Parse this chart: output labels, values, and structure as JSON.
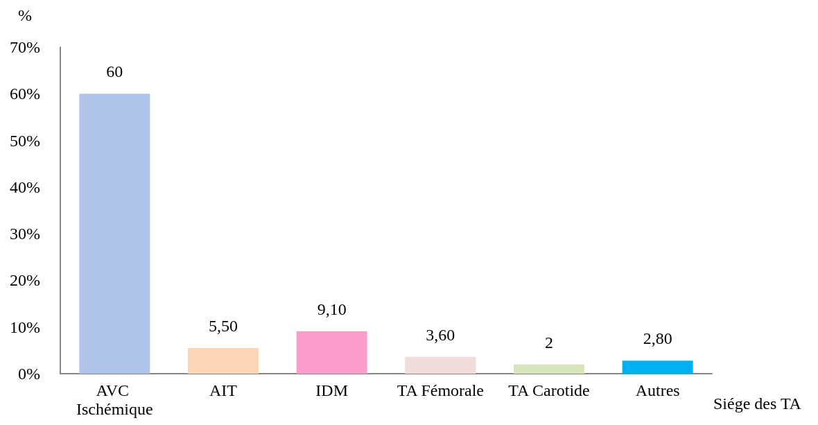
{
  "chart_data": {
    "type": "bar",
    "xlabel": "Siége des TA",
    "ylabel": "%",
    "categories": [
      "AVC Ischémique",
      "AIT",
      "IDM",
      "TA Fémorale",
      "TA Carotide",
      "Autres"
    ],
    "values": [
      60,
      5.5,
      9.1,
      3.6,
      2,
      2.8
    ],
    "value_labels": [
      "60",
      "5,50",
      "9,10",
      "3,60",
      "2",
      "2,80"
    ],
    "colors": [
      "#b0c4e9",
      "#fbd5b5",
      "#fa9dcb",
      "#f0dcdb",
      "#d8e4bc",
      "#00b0f0"
    ],
    "ylim": [
      0,
      70
    ],
    "yticks": [
      {
        "value": 0,
        "label": "0%"
      },
      {
        "value": 10,
        "label": "10%"
      },
      {
        "value": 20,
        "label": "20%"
      },
      {
        "value": 30,
        "label": "30%"
      },
      {
        "value": 40,
        "label": "40%"
      },
      {
        "value": 50,
        "label": "50%"
      },
      {
        "value": 60,
        "label": "60%"
      },
      {
        "value": 70,
        "label": "70%"
      }
    ]
  }
}
